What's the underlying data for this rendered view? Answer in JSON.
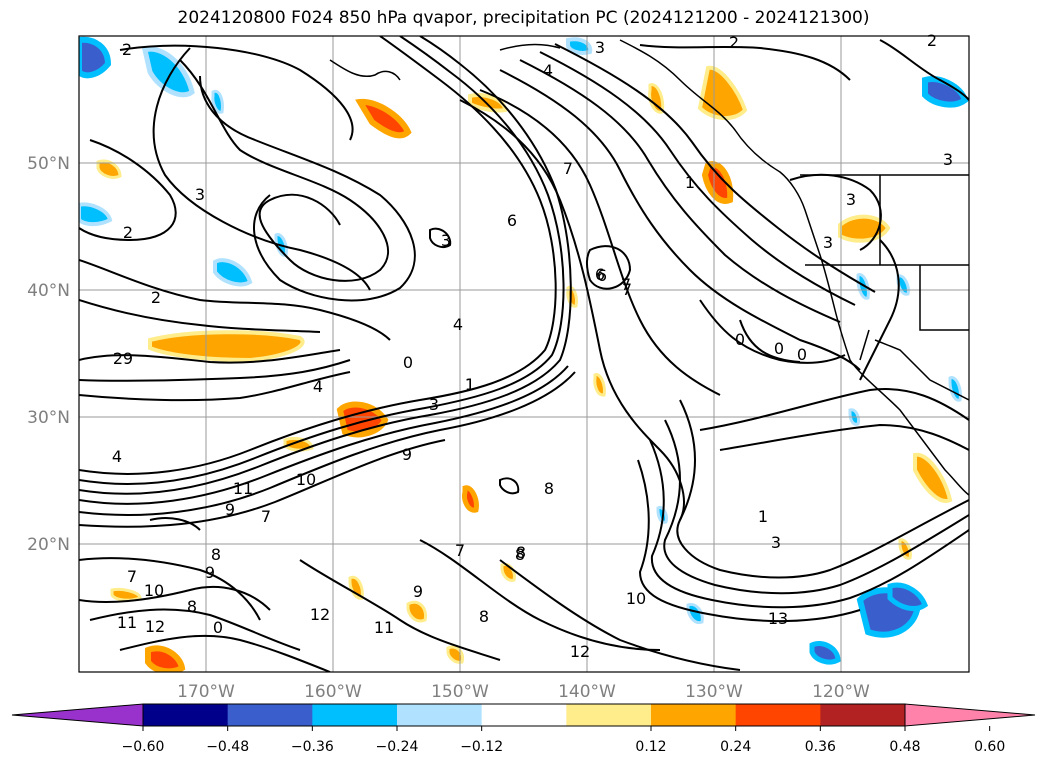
{
  "title": "2024120800 F024 850 hPa qvapor, precipitation PC (2024121200 - 2024121300)",
  "map": {
    "lat_labels": [
      "50°N",
      "40°N",
      "30°N",
      "20°N"
    ],
    "lon_labels": [
      "170°W",
      "160°W",
      "150°W",
      "140°W",
      "130°W",
      "120°W"
    ],
    "contour_labels": [
      "2",
      "3",
      "4",
      "2",
      "2",
      "3",
      "2",
      "3",
      "4",
      "6",
      "7",
      "0",
      "6",
      "7",
      "9",
      "1",
      "10",
      "11",
      "9",
      "7",
      "8",
      "8",
      "10",
      "7",
      "9",
      "8",
      "11",
      "12",
      "0",
      "11",
      "8",
      "9",
      "12",
      "7",
      "8",
      "10",
      "13",
      "3",
      "1",
      "12",
      "4",
      "3",
      "4",
      "0",
      "0",
      "0",
      "7",
      "1",
      "1",
      "3",
      "3",
      "2",
      "2",
      "8",
      "3",
      "6",
      "9"
    ]
  },
  "colorbar": {
    "tick_labels": [
      "−0.60",
      "−0.48",
      "−0.36",
      "−0.24",
      "−0.12",
      "0.12",
      "0.24",
      "0.36",
      "0.48",
      "0.60"
    ],
    "colors": [
      "#9932cc",
      "#00008b",
      "#3a5fcd",
      "#00bfff",
      "#b0e2ff",
      "#ffffff",
      "#ffec8b",
      "#ffa500",
      "#ff4500",
      "#b22222",
      "#ff82ab"
    ]
  }
}
